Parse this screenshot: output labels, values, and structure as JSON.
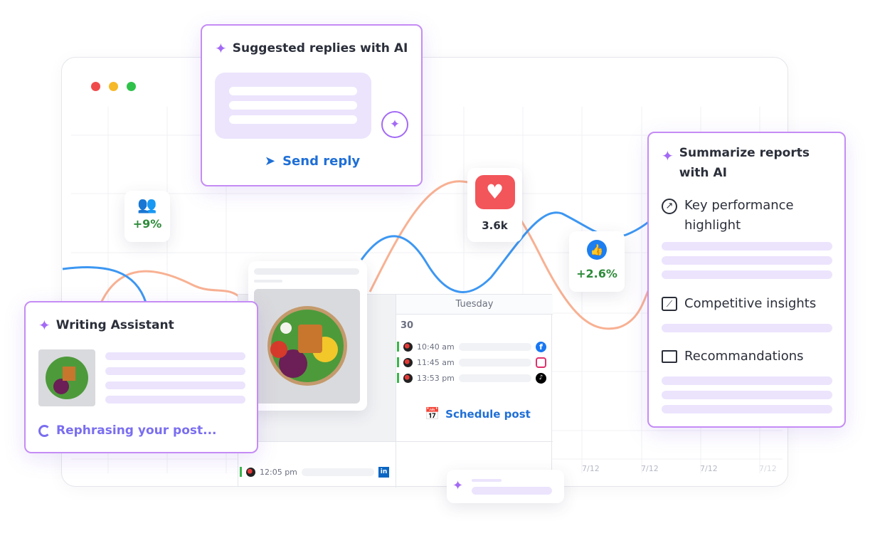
{
  "window": {
    "dots": [
      "#f04b4b",
      "#f6b928",
      "#2fc24a"
    ],
    "x_labels": [
      "7/12",
      "7/12",
      "7/12",
      "7/12"
    ]
  },
  "colors": {
    "accent": "#1f6fd6",
    "ai_purple": "#a36af5",
    "orange_line": "#f7a887",
    "blue_line": "#3d97f2",
    "heart": "#f2555a"
  },
  "suggested": {
    "title": "Suggested replies with AI",
    "send_label": "Send reply"
  },
  "users_stat": {
    "icon": "users-icon",
    "value": "+9%"
  },
  "likes_stat": {
    "icon": "heart-icon",
    "value": "3.6k"
  },
  "thumbs_stat": {
    "icon": "thumbs-up-icon",
    "value": "+2.6%"
  },
  "summarize": {
    "title": "Summarize reports with AI",
    "sections": [
      {
        "icon": "arrow-up-right-circle-icon",
        "label": "Key performance highlight"
      },
      {
        "icon": "line-chart-icon",
        "label": "Competitive insights"
      },
      {
        "icon": "presentation-icon",
        "label": "Recommandations"
      }
    ]
  },
  "writing": {
    "title": "Writing Assistant",
    "status": "Rephrasing your post..."
  },
  "calendar": {
    "day": "Tuesday",
    "date": "30",
    "posts": [
      {
        "time": "10:40 am",
        "network": "facebook"
      },
      {
        "time": "11:45 am",
        "network": "instagram"
      },
      {
        "time": "13:53 pm",
        "network": "tiktok"
      }
    ],
    "schedule_label": "Schedule post",
    "lower_posts": [
      {
        "time": "12:05 pm",
        "network": "linkedin"
      }
    ]
  }
}
